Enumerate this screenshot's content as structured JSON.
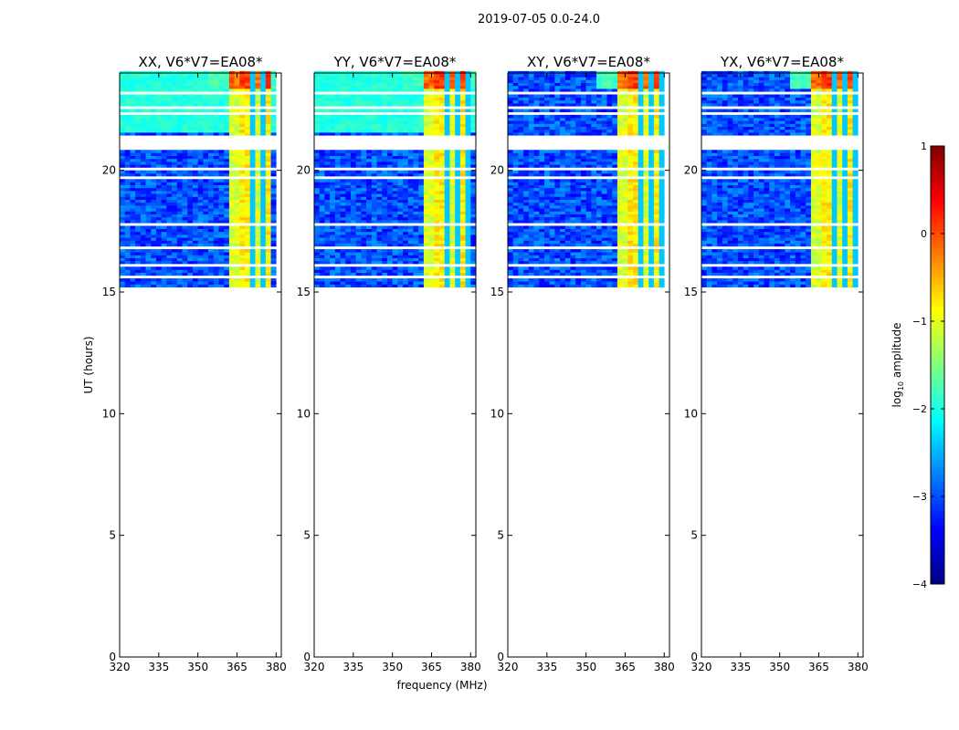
{
  "figure_title": "2019-07-05 0.0-24.0",
  "chart_data": {
    "type": "heatmap",
    "xlabel": "frequency (MHz)",
    "ylabel": "UT (hours)",
    "xlim": [
      320,
      382
    ],
    "ylim": [
      0,
      24
    ],
    "xticks": [
      320,
      335,
      350,
      365,
      380
    ],
    "yticks": [
      0,
      5,
      10,
      15,
      20
    ],
    "data_time_range_hours": [
      15.2,
      24.0
    ],
    "strong_rfi_band_mhz": [
      361,
      380
    ],
    "panels": [
      {
        "title": "XX, V6*V7=EA08*",
        "rfi_band_mhz": [
          361,
          378
        ],
        "background_log_amp_high_times": -2.1
      },
      {
        "title": "YY, V6*V7=EA08*",
        "rfi_band_mhz": [
          361,
          380
        ],
        "background_log_amp_high_times": -2.1
      },
      {
        "title": "XY, V6*V7=EA08*",
        "rfi_band_mhz": [
          361,
          379
        ],
        "background_log_amp_high_times": -3.0
      },
      {
        "title": "YX, V6*V7=EA08*",
        "rfi_band_mhz": [
          361,
          379
        ],
        "background_log_amp_high_times": -3.0
      }
    ],
    "colorbar": {
      "label": "log",
      "label_sub": "10",
      "label_rest": " amplitude",
      "min": -4,
      "max": 1,
      "ticks": [
        1,
        0,
        -1,
        -2,
        -3,
        -4
      ],
      "tick_labels": [
        "1",
        "0",
        "−1",
        "−2",
        "−3",
        "−4"
      ],
      "colormap": "jet"
    }
  }
}
